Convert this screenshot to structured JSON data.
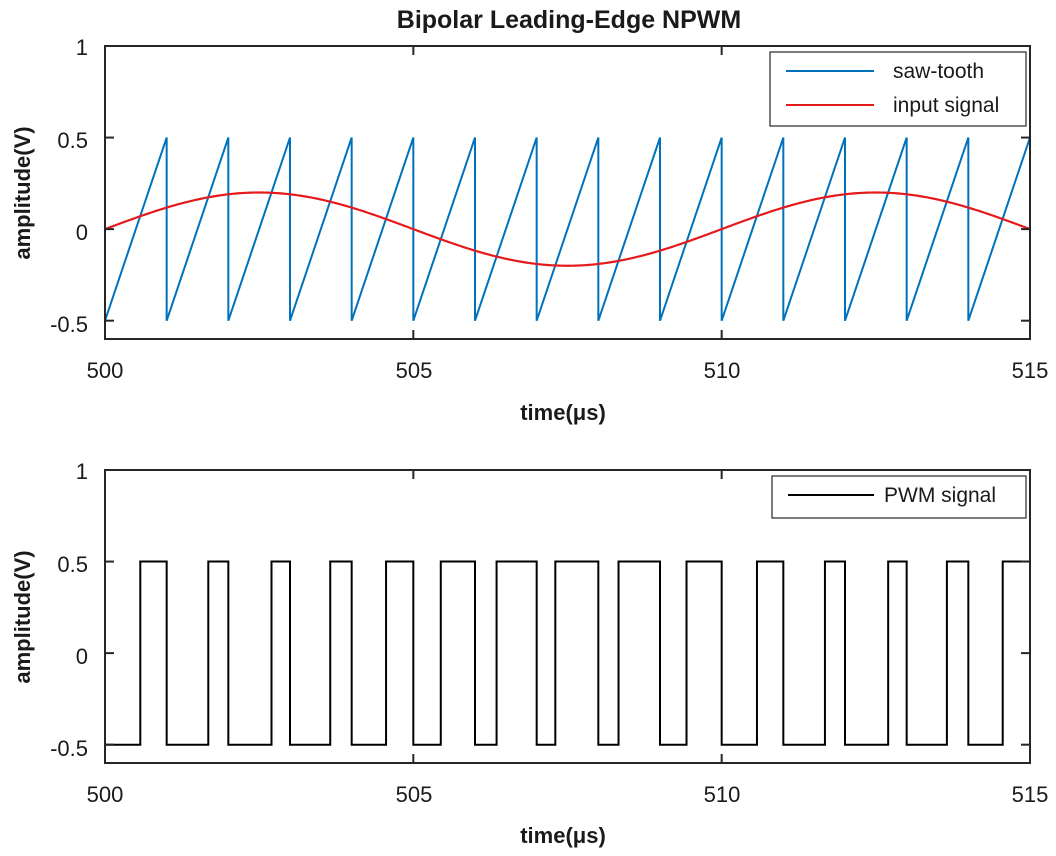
{
  "chart_data": [
    {
      "type": "line",
      "title": "Bipolar Leading-Edge NPWM",
      "xlabel": "time(μs)",
      "ylabel": "amplitude(V)",
      "xlim": [
        500,
        515
      ],
      "ylim": [
        -0.6,
        1
      ],
      "xticks": [
        "500",
        "505",
        "510",
        "515"
      ],
      "yticks": [
        "-0.5",
        "0",
        "0.5",
        "1"
      ],
      "legend": "top-right",
      "series": [
        {
          "name": "saw-tooth",
          "color": "#0072BD",
          "kind": "sawtooth",
          "period_us": 1,
          "min": -0.5,
          "max": 0.5
        },
        {
          "name": "input signal",
          "color": "#E41A1C",
          "kind": "sine",
          "amplitude": 0.2,
          "period_us": 10,
          "phase_zero_us": 500
        }
      ]
    },
    {
      "type": "line",
      "title": "",
      "xlabel": "time(μs)",
      "ylabel": "amplitude(V)",
      "xlim": [
        500,
        515
      ],
      "ylim": [
        -0.6,
        1
      ],
      "xticks": [
        "500",
        "505",
        "510",
        "515"
      ],
      "yticks": [
        "-0.5",
        "0",
        "0.5",
        "1"
      ],
      "legend": "top-right",
      "series": [
        {
          "name": "PWM signal",
          "color": "#000000",
          "kind": "pwm",
          "high": 0.5,
          "low": -0.5
        }
      ]
    }
  ]
}
